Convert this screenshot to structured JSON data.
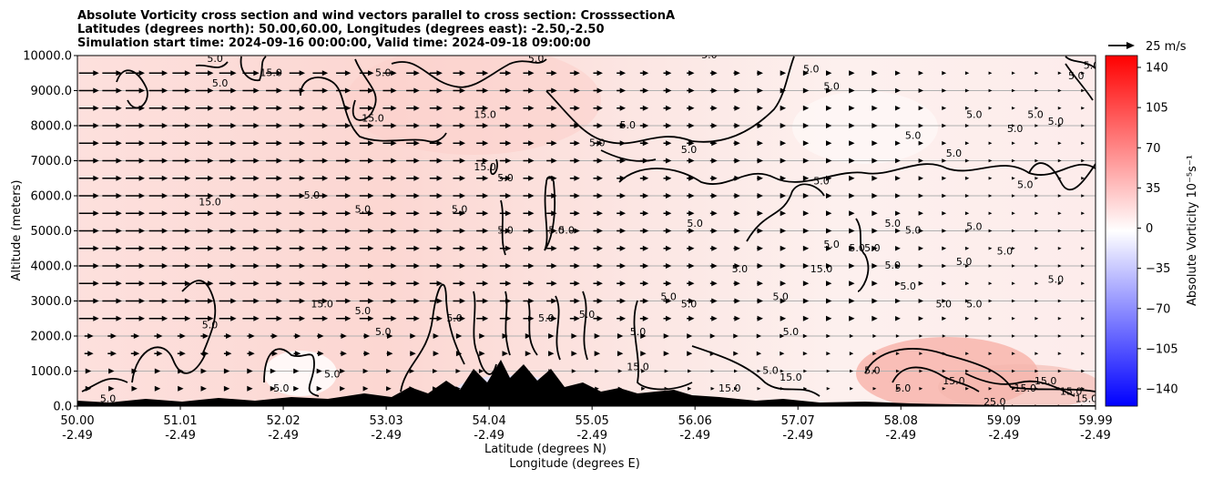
{
  "chart_data": {
    "type": "contour",
    "title_lines": [
      "Absolute Vorticity cross section and wind vectors parallel to cross section: CrosssectionA",
      "Latitudes (degrees north): 50.00,60.00, Longitudes (degrees east): -2.50,-2.50",
      "Simulation start time: 2024-09-16 00:00:00, Valid time: 2024-09-18 09:00:00"
    ],
    "xlabel_lat": "Latitude (degrees N)",
    "xlabel_lon": "Longitude (degrees E)",
    "ylabel": "Altitude (meters)",
    "x_ticks": [
      {
        "lat": "50.00",
        "lon": "-2.49",
        "value": 50.0
      },
      {
        "lat": "51.01",
        "lon": "-2.49",
        "value": 51.01
      },
      {
        "lat": "52.02",
        "lon": "-2.49",
        "value": 52.02
      },
      {
        "lat": "53.03",
        "lon": "-2.49",
        "value": 53.03
      },
      {
        "lat": "54.04",
        "lon": "-2.49",
        "value": 54.04
      },
      {
        "lat": "55.05",
        "lon": "-2.49",
        "value": 55.05
      },
      {
        "lat": "56.06",
        "lon": "-2.49",
        "value": 56.06
      },
      {
        "lat": "57.07",
        "lon": "-2.49",
        "value": 57.07
      },
      {
        "lat": "58.08",
        "lon": "-2.49",
        "value": 58.08
      },
      {
        "lat": "59.09",
        "lon": "-2.49",
        "value": 59.09
      },
      {
        "lat": "59.99",
        "lon": "-2.49",
        "value": 59.99
      }
    ],
    "xlim": [
      50.0,
      59.99
    ],
    "y_ticks": [
      "0.0",
      "1000.0",
      "2000.0",
      "3000.0",
      "4000.0",
      "5000.0",
      "6000.0",
      "7000.0",
      "8000.0",
      "9000.0",
      "10000.0"
    ],
    "ylim": [
      0,
      10000
    ],
    "grid": "horizontal",
    "colorbar": {
      "label": "Absolute Vorticity 10⁻⁵s⁻¹",
      "ticks": [
        "140",
        "105",
        "70",
        "35",
        "0",
        "−35",
        "−70",
        "−105",
        "−140"
      ],
      "range": [
        -150,
        150
      ],
      "colors": {
        "min": "#0000ff",
        "mid": "#ffffff",
        "max": "#ff0000"
      }
    },
    "quiver_key": {
      "label": "25 m/s",
      "speed": 25
    },
    "contour_levels_labeled": [
      "5.0",
      "15.0",
      "25.0"
    ],
    "contour_labels": [
      {
        "text": "5.0",
        "lat": 51.4,
        "alt": 9200
      },
      {
        "text": "15.0",
        "lat": 51.9,
        "alt": 9500
      },
      {
        "text": "5.0",
        "lat": 51.35,
        "alt": 9900
      },
      {
        "text": "5.0",
        "lat": 53.0,
        "alt": 9500
      },
      {
        "text": "15.0",
        "lat": 52.9,
        "alt": 8200
      },
      {
        "text": "15.0",
        "lat": 54.0,
        "alt": 8300
      },
      {
        "text": "5.0",
        "lat": 54.5,
        "alt": 9900
      },
      {
        "text": "5.0",
        "lat": 55.1,
        "alt": 7500
      },
      {
        "text": "5.0",
        "lat": 55.4,
        "alt": 8000
      },
      {
        "text": "5.0",
        "lat": 56.0,
        "alt": 7300
      },
      {
        "text": "5.0",
        "lat": 56.2,
        "alt": 10000
      },
      {
        "text": "5.0",
        "lat": 57.2,
        "alt": 9600
      },
      {
        "text": "5.0",
        "lat": 57.4,
        "alt": 9100
      },
      {
        "text": "5.0",
        "lat": 58.8,
        "alt": 8300
      },
      {
        "text": "5.0",
        "lat": 59.2,
        "alt": 7900
      },
      {
        "text": "5.0",
        "lat": 59.4,
        "alt": 8300
      },
      {
        "text": "5.0",
        "lat": 58.2,
        "alt": 7700
      },
      {
        "text": "5.0",
        "lat": 58.6,
        "alt": 7200
      },
      {
        "text": "5.0",
        "lat": 59.6,
        "alt": 8100
      },
      {
        "text": "5.0",
        "lat": 59.8,
        "alt": 9400
      },
      {
        "text": "5.0",
        "lat": 59.95,
        "alt": 9700
      },
      {
        "text": "5.0",
        "lat": 57.3,
        "alt": 6400
      },
      {
        "text": "5.0",
        "lat": 59.3,
        "alt": 6300
      },
      {
        "text": "15.0",
        "lat": 51.3,
        "alt": 5800
      },
      {
        "text": "5.0",
        "lat": 52.3,
        "alt": 6000
      },
      {
        "text": "5.0",
        "lat": 52.8,
        "alt": 5600
      },
      {
        "text": "5.0",
        "lat": 53.75,
        "alt": 5600
      },
      {
        "text": "15.0",
        "lat": 54.0,
        "alt": 6800
      },
      {
        "text": "5.0",
        "lat": 54.2,
        "alt": 6500
      },
      {
        "text": "5.0",
        "lat": 54.2,
        "alt": 5000
      },
      {
        "text": "5.0",
        "lat": 54.7,
        "alt": 5000
      },
      {
        "text": "5.0",
        "lat": 54.8,
        "alt": 5000
      },
      {
        "text": "5.0",
        "lat": 56.06,
        "alt": 5200
      },
      {
        "text": "5.0",
        "lat": 56.5,
        "alt": 3900
      },
      {
        "text": "5.0",
        "lat": 57.4,
        "alt": 4600
      },
      {
        "text": "15.0",
        "lat": 57.3,
        "alt": 3900
      },
      {
        "text": "5.0",
        "lat": 57.65,
        "alt": 4500
      },
      {
        "text": "5.0",
        "lat": 57.8,
        "alt": 4500
      },
      {
        "text": "5.0",
        "lat": 58.0,
        "alt": 5200
      },
      {
        "text": "5.0",
        "lat": 58.2,
        "alt": 5000
      },
      {
        "text": "5.0",
        "lat": 58.0,
        "alt": 4000
      },
      {
        "text": "5.0",
        "lat": 58.15,
        "alt": 3400
      },
      {
        "text": "5.0",
        "lat": 58.8,
        "alt": 5100
      },
      {
        "text": "5.0",
        "lat": 58.7,
        "alt": 4100
      },
      {
        "text": "5.0",
        "lat": 59.1,
        "alt": 4400
      },
      {
        "text": "5.0",
        "lat": 59.6,
        "alt": 3600
      },
      {
        "text": "5.0",
        "lat": 58.5,
        "alt": 2900
      },
      {
        "text": "5.0",
        "lat": 58.8,
        "alt": 2900
      },
      {
        "text": "15.0",
        "lat": 52.4,
        "alt": 2900
      },
      {
        "text": "5.0",
        "lat": 52.8,
        "alt": 2700
      },
      {
        "text": "5.0",
        "lat": 53.0,
        "alt": 2100
      },
      {
        "text": "5.0",
        "lat": 51.3,
        "alt": 2300
      },
      {
        "text": "5.0",
        "lat": 53.7,
        "alt": 2500
      },
      {
        "text": "5.0",
        "lat": 54.6,
        "alt": 2500
      },
      {
        "text": "5.0",
        "lat": 55.0,
        "alt": 2600
      },
      {
        "text": "5.0",
        "lat": 55.5,
        "alt": 2100
      },
      {
        "text": "5.0",
        "lat": 55.8,
        "alt": 3100
      },
      {
        "text": "5.0",
        "lat": 56.0,
        "alt": 2900
      },
      {
        "text": "5.0",
        "lat": 56.9,
        "alt": 3100
      },
      {
        "text": "5.0",
        "lat": 57.0,
        "alt": 2100
      },
      {
        "text": "15.0",
        "lat": 55.5,
        "alt": 1100
      },
      {
        "text": "15.0",
        "lat": 56.4,
        "alt": 500
      },
      {
        "text": "15.0",
        "lat": 57.0,
        "alt": 800
      },
      {
        "text": "5.0",
        "lat": 57.8,
        "alt": 1000
      },
      {
        "text": "5.0",
        "lat": 58.1,
        "alt": 500
      },
      {
        "text": "15.0",
        "lat": 58.6,
        "alt": 700
      },
      {
        "text": "15.0",
        "lat": 59.5,
        "alt": 700
      },
      {
        "text": "15.0",
        "lat": 59.3,
        "alt": 500
      },
      {
        "text": "15.0",
        "lat": 59.75,
        "alt": 400
      },
      {
        "text": "15.0",
        "lat": 59.9,
        "alt": 200
      },
      {
        "text": "25.0",
        "lat": 59.0,
        "alt": 100
      },
      {
        "text": "5.0",
        "lat": 50.3,
        "alt": 200
      },
      {
        "text": "5.0",
        "lat": 52.0,
        "alt": 500
      },
      {
        "text": "5.0",
        "lat": 52.5,
        "alt": 900
      },
      {
        "text": "5.0",
        "lat": 56.8,
        "alt": 1000
      }
    ]
  }
}
